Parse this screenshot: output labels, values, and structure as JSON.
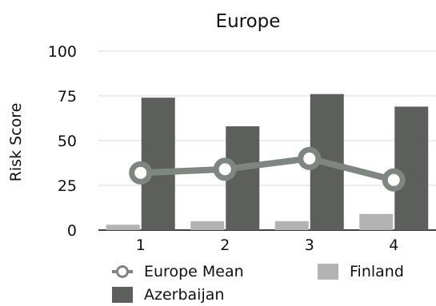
{
  "chart_data": {
    "type": "bar",
    "title": "Europe",
    "xlabel": "",
    "ylabel": "Risk Score",
    "categories": [
      "1",
      "2",
      "3",
      "4"
    ],
    "ylim": [
      0,
      100
    ],
    "yticks": [
      0,
      25,
      50,
      75,
      100
    ],
    "grid": "horizontal",
    "series": [
      {
        "name": "Finland",
        "kind": "bar",
        "color": "#b3b3b3",
        "values": [
          3,
          5,
          5,
          9
        ]
      },
      {
        "name": "Azerbaijan",
        "kind": "bar",
        "color": "#5c5f5c",
        "values": [
          74,
          58,
          76,
          69
        ]
      },
      {
        "name": "Europe Mean",
        "kind": "line",
        "color": "#7f8580",
        "values": [
          32,
          34,
          40,
          28
        ]
      }
    ],
    "legend": "bottom"
  }
}
